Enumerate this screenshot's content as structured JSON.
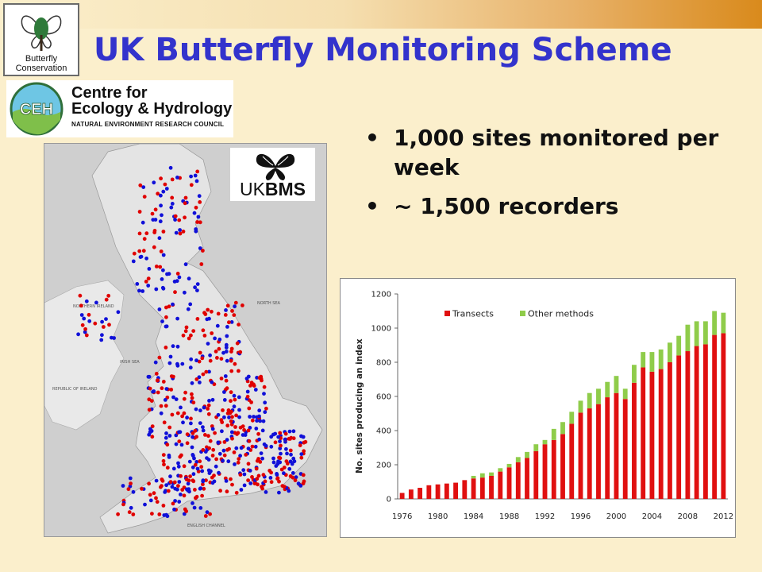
{
  "slide": {
    "title": "UK Butterfly Monitoring Scheme",
    "bullets": [
      "1,000 sites monitored per week",
      "~ 1,500 recorders"
    ]
  },
  "logos": {
    "butterfly_conservation": {
      "line1": "Butterfly",
      "line2": "Conservation",
      "icon": "butterfly-tree-icon"
    },
    "ceh": {
      "badge": "CEH",
      "line1": "Centre for",
      "line2": "Ecology & Hydrology",
      "line3": "NATURAL ENVIRONMENT RESEARCH COUNCIL"
    },
    "ukbms": {
      "prefix": "UK",
      "suffix": "BMS",
      "icon": "butterfly-icon"
    }
  },
  "map": {
    "labels": {
      "north_sea": "NORTH SEA",
      "irish_sea": "IRISH SEA",
      "english_channel": "ENGLISH CHANNEL",
      "northern_ireland": "NORTHERN IRELAND",
      "republic_of_ireland": "REPUBLIC OF IRELAND"
    },
    "colors": {
      "transect_dot": "#e00000",
      "other_dot": "#1010d8"
    }
  },
  "colors": {
    "title": "#3333cc",
    "transects": "#e01010",
    "other_methods": "#8fcc4a"
  },
  "chart_data": {
    "type": "bar",
    "stacked": true,
    "title": "",
    "xlabel": "",
    "ylabel": "No. sites producing an index",
    "ylim": [
      0,
      1200
    ],
    "yticks": [
      0,
      200,
      400,
      600,
      800,
      1000,
      1200
    ],
    "xtick_labels": [
      "1976",
      "1980",
      "1984",
      "1988",
      "1992",
      "1996",
      "2000",
      "2004",
      "2008",
      "2012"
    ],
    "legend_position": "top",
    "categories": [
      1976,
      1977,
      1978,
      1979,
      1980,
      1981,
      1982,
      1983,
      1984,
      1985,
      1986,
      1987,
      1988,
      1989,
      1990,
      1991,
      1992,
      1993,
      1994,
      1995,
      1996,
      1997,
      1998,
      1999,
      2000,
      2001,
      2002,
      2003,
      2004,
      2005,
      2006,
      2007,
      2008,
      2009,
      2010,
      2011,
      2012
    ],
    "series": [
      {
        "name": "Transects",
        "color": "#e01010",
        "values": [
          35,
          55,
          65,
          80,
          85,
          90,
          95,
          110,
          120,
          125,
          135,
          160,
          185,
          215,
          240,
          280,
          320,
          345,
          380,
          440,
          505,
          530,
          555,
          595,
          620,
          585,
          680,
          770,
          745,
          760,
          800,
          840,
          865,
          895,
          905,
          960,
          970
        ]
      },
      {
        "name": "Other methods",
        "color": "#8fcc4a",
        "values": [
          0,
          0,
          0,
          0,
          0,
          0,
          0,
          0,
          15,
          25,
          20,
          20,
          20,
          30,
          35,
          40,
          25,
          65,
          70,
          70,
          70,
          90,
          90,
          90,
          100,
          60,
          105,
          90,
          115,
          115,
          115,
          115,
          155,
          145,
          135,
          140,
          120
        ]
      }
    ]
  }
}
